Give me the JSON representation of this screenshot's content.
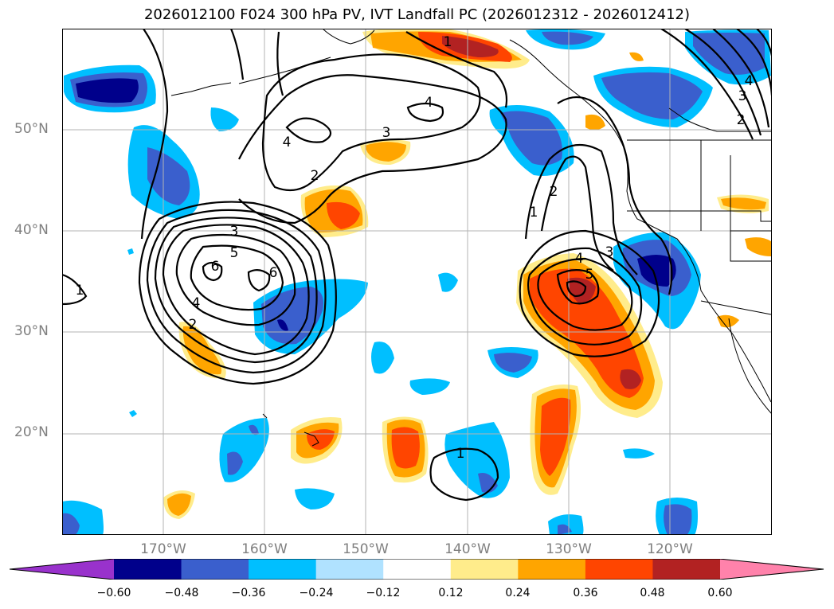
{
  "title": "2026012100 F024 300 hPa PV, IVT Landfall PC (2026012312 - 2026012412)",
  "map": {
    "lat_labels": [
      "50°N",
      "40°N",
      "30°N",
      "20°N"
    ],
    "lon_labels": [
      "170°W",
      "160°W",
      "150°W",
      "140°W",
      "130°W",
      "120°W"
    ],
    "contour_labels": {
      "west": [
        "3",
        "5",
        "6",
        "6",
        "4",
        "2"
      ],
      "north": [
        "4",
        "3",
        "4",
        "2",
        "1"
      ],
      "east": [
        "1",
        "2",
        "4",
        "3",
        "5"
      ],
      "northeast": [
        "4",
        "3",
        "2"
      ],
      "south": [
        "1"
      ],
      "far_west": [
        "1"
      ]
    }
  },
  "colorbar": {
    "ticks": [
      "−0.60",
      "−0.48",
      "−0.36",
      "−0.24",
      "−0.12",
      "0.12",
      "0.24",
      "0.36",
      "0.48",
      "0.60"
    ],
    "colors": [
      "#9932cc",
      "#00008b",
      "#3a5fcd",
      "#00bfff",
      "#b0e2ff",
      "#ffffff",
      "#ffec8b",
      "#ffa500",
      "#ff4500",
      "#b22222",
      "#ff82ab"
    ]
  }
}
